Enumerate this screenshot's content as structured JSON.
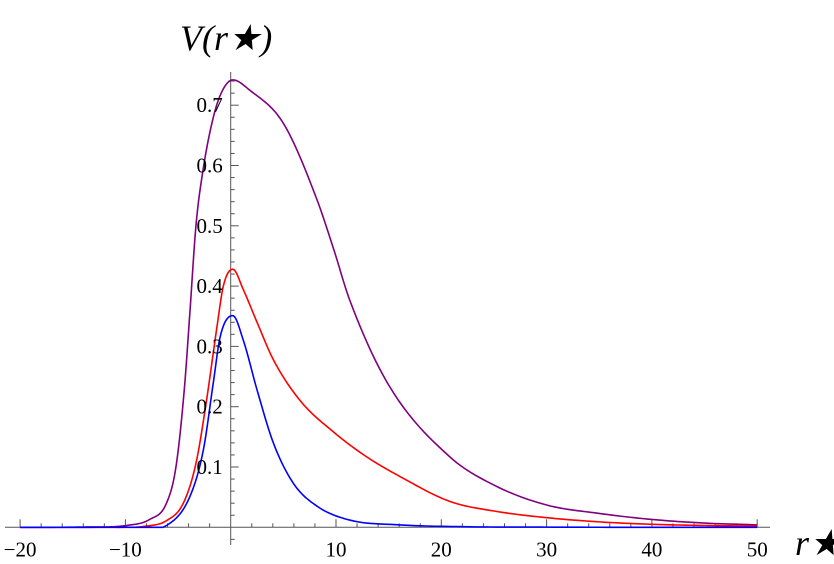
{
  "chart_data": {
    "type": "line",
    "title": "",
    "xlabel": "r★",
    "ylabel": "V(r★)",
    "xlim": [
      -20,
      50
    ],
    "ylim": [
      0,
      0.75
    ],
    "grid": false,
    "legend": "none",
    "x_ticks": [
      "−20",
      "−10",
      "10",
      "20",
      "30",
      "40",
      "50"
    ],
    "x_tick_values": [
      -20,
      -10,
      10,
      20,
      30,
      40,
      50
    ],
    "y_ticks": [
      "0.1",
      "0.2",
      "0.3",
      "0.4",
      "0.5",
      "0.6",
      "0.7"
    ],
    "y_tick_values": [
      0.1,
      0.2,
      0.3,
      0.4,
      0.5,
      0.6,
      0.7
    ],
    "series": [
      {
        "color": "#800080",
        "x": [
          -20,
          -14,
          -9.9,
          -7.7,
          -6.1,
          -5.2,
          -4.4,
          -3.9,
          -3.3,
          -2.65,
          -1.65,
          -0.85,
          0.2,
          1.8,
          5.0,
          8.2,
          9.8,
          11.3,
          15,
          20.8,
          25,
          30,
          35,
          40,
          45,
          50
        ],
        "y": [
          0,
          0.0005,
          0.003,
          0.013,
          0.04,
          0.1,
          0.23,
          0.35,
          0.5,
          0.59,
          0.68,
          0.722,
          0.742,
          0.725,
          0.67,
          0.543,
          0.46,
          0.377,
          0.236,
          0.117,
          0.07,
          0.037,
          0.023,
          0.013,
          0.007,
          0.004
        ]
      },
      {
        "color": "#ff0000",
        "x": [
          -20,
          -12,
          -8,
          -6.1,
          -4.5,
          -3.3,
          -2.3,
          -1.3,
          -0.7,
          0.2,
          1.2,
          2.5,
          4.05,
          6.6,
          9.7,
          12.9,
          16.1,
          20.8,
          25,
          30,
          35,
          40,
          45,
          50
        ],
        "y": [
          0,
          0.0002,
          0.002,
          0.011,
          0.04,
          0.106,
          0.21,
          0.333,
          0.4,
          0.428,
          0.394,
          0.34,
          0.278,
          0.21,
          0.159,
          0.117,
          0.084,
          0.043,
          0.027,
          0.016,
          0.009,
          0.005,
          0.003,
          0.002
        ]
      },
      {
        "color": "#0000ff",
        "x": [
          -20,
          -10,
          -6.1,
          -3.9,
          -2.6,
          -1.65,
          -1.0,
          0.2,
          1.2,
          2.5,
          4.05,
          5.95,
          8.2,
          11.3,
          16.1,
          22,
          30,
          40,
          50
        ],
        "y": [
          0,
          0.0002,
          0.003,
          0.05,
          0.128,
          0.24,
          0.316,
          0.351,
          0.31,
          0.228,
          0.14,
          0.073,
          0.035,
          0.012,
          0.004,
          0.001,
          0.0003,
          0,
          0
        ]
      }
    ]
  }
}
